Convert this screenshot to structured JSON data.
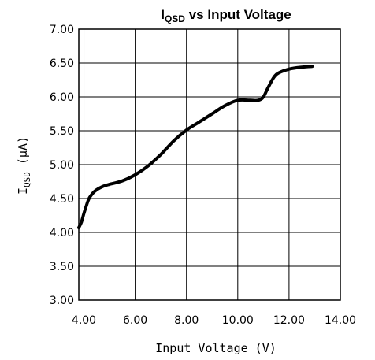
{
  "chart_data": {
    "type": "line",
    "title_main": "I",
    "title_sub": "QSD",
    "title_rest": " vs Input Voltage",
    "xlabel": "Input Voltage (V)",
    "ylabel_main": "I",
    "ylabel_sub": "QSD",
    "ylabel_rest": " (μA)",
    "xlim": [
      3.8,
      14.0
    ],
    "ylim": [
      3.0,
      7.0
    ],
    "x_ticks": [
      4.0,
      6.0,
      8.0,
      10.0,
      12.0,
      14.0
    ],
    "x_tick_labels": [
      "4.00",
      "6.00",
      "8.00",
      "10.00",
      "12.00",
      "14.00"
    ],
    "y_ticks": [
      3.0,
      3.5,
      4.0,
      4.5,
      5.0,
      5.5,
      6.0,
      6.5,
      7.0
    ],
    "y_tick_labels": [
      "3.00",
      "3.50",
      "4.00",
      "4.50",
      "5.00",
      "5.50",
      "6.00",
      "6.50",
      "7.00"
    ],
    "grid": true,
    "line_color": "#000000",
    "series": [
      {
        "x": [
          3.8,
          3.9,
          4.0,
          4.1,
          4.2,
          4.35,
          4.5,
          4.75,
          5.0,
          5.5,
          6.0,
          6.5,
          7.0,
          7.5,
          8.0,
          8.5,
          9.0,
          9.5,
          10.0,
          10.5,
          10.8,
          11.0,
          11.2,
          11.5,
          12.0,
          12.5,
          12.9
        ],
        "y": [
          4.07,
          4.15,
          4.28,
          4.4,
          4.5,
          4.58,
          4.63,
          4.68,
          4.71,
          4.76,
          4.85,
          4.98,
          5.15,
          5.35,
          5.51,
          5.63,
          5.75,
          5.87,
          5.95,
          5.95,
          5.95,
          6.0,
          6.15,
          6.33,
          6.41,
          6.44,
          6.45
        ]
      }
    ]
  }
}
